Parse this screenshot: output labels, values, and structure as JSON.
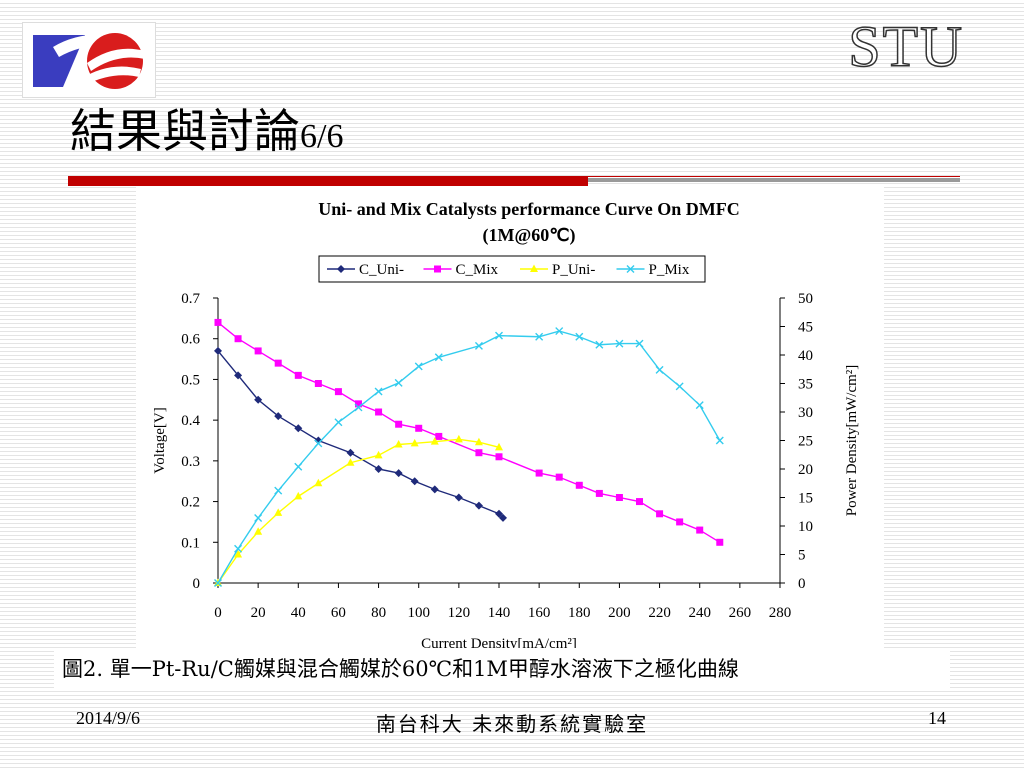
{
  "slide": {
    "brand": "STU",
    "title_cjk": "結果與討論",
    "title_num": "6/6",
    "caption": "圖2. 單一Pt-Ru/C觸媒與混合觸媒於60℃和1M甲醇水溶液下之極化曲線",
    "footer_date": "2014/9/6",
    "footer_center": "南台科大  未來動系統實驗室",
    "page_number": "14"
  },
  "colors": {
    "accent_red": "#c00000",
    "c_uni": "#1f2a7a",
    "c_mix": "#ff00ff",
    "p_uni": "#ffff00",
    "p_mix": "#33ccee"
  },
  "chart_data": {
    "type": "line",
    "title": "Uni- and Mix Catalysts performance Curve On DMFC",
    "subtitle": "(1M@60℃)",
    "xlabel": "Current Density[mA/cm²]",
    "ylabel": "Voltage[V]",
    "y2label": "Power Density[mW/cm²]",
    "xlim": [
      0,
      280
    ],
    "ylim": [
      0,
      0.7
    ],
    "y2lim": [
      0,
      50
    ],
    "xticks": [
      "0",
      "20",
      "40",
      "60",
      "80",
      "100",
      "120",
      "140",
      "160",
      "180",
      "200",
      "220",
      "240",
      "260",
      "280"
    ],
    "yticks": [
      "0",
      "0.1",
      "0.2",
      "0.3",
      "0.4",
      "0.5",
      "0.6",
      "0.7"
    ],
    "y2ticks": [
      "0",
      "5",
      "10",
      "15",
      "20",
      "25",
      "30",
      "35",
      "40",
      "45",
      "50"
    ],
    "legend_position": "top",
    "series": [
      {
        "name": "C_Uni-",
        "axis": "left",
        "marker": "diamond",
        "color": "#1f2a7a",
        "points": [
          [
            0,
            0.57
          ],
          [
            10,
            0.51
          ],
          [
            20,
            0.45
          ],
          [
            30,
            0.41
          ],
          [
            40,
            0.38
          ],
          [
            50,
            0.35
          ],
          [
            66,
            0.32
          ],
          [
            80,
            0.28
          ],
          [
            90,
            0.27
          ],
          [
            98,
            0.25
          ],
          [
            108,
            0.23
          ],
          [
            120,
            0.21
          ],
          [
            130,
            0.19
          ],
          [
            140,
            0.17
          ],
          [
            142,
            0.16
          ]
        ]
      },
      {
        "name": "C_Mix",
        "axis": "left",
        "marker": "square",
        "color": "#ff00ff",
        "points": [
          [
            0,
            0.64
          ],
          [
            10,
            0.6
          ],
          [
            20,
            0.57
          ],
          [
            30,
            0.54
          ],
          [
            40,
            0.51
          ],
          [
            50,
            0.49
          ],
          [
            60,
            0.47
          ],
          [
            70,
            0.44
          ],
          [
            80,
            0.42
          ],
          [
            90,
            0.39
          ],
          [
            100,
            0.38
          ],
          [
            110,
            0.36
          ],
          [
            130,
            0.32
          ],
          [
            140,
            0.31
          ],
          [
            160,
            0.27
          ],
          [
            170,
            0.26
          ],
          [
            180,
            0.24
          ],
          [
            190,
            0.22
          ],
          [
            200,
            0.21
          ],
          [
            210,
            0.2
          ],
          [
            220,
            0.17
          ],
          [
            230,
            0.15
          ],
          [
            240,
            0.13
          ],
          [
            250,
            0.1
          ]
        ]
      },
      {
        "name": "P_Uni-",
        "axis": "right",
        "marker": "triangle",
        "color": "#ffff00",
        "points": [
          [
            0,
            0
          ],
          [
            10,
            5
          ],
          [
            20,
            9
          ],
          [
            30,
            12.3
          ],
          [
            40,
            15.2
          ],
          [
            50,
            17.5
          ],
          [
            66,
            21.1
          ],
          [
            80,
            22.4
          ],
          [
            90,
            24.3
          ],
          [
            98,
            24.5
          ],
          [
            108,
            24.8
          ],
          [
            120,
            25.2
          ],
          [
            130,
            24.7
          ],
          [
            140,
            23.8
          ]
        ]
      },
      {
        "name": "P_Mix",
        "axis": "right",
        "marker": "x",
        "color": "#33ccee",
        "points": [
          [
            0,
            0
          ],
          [
            10,
            6
          ],
          [
            20,
            11.4
          ],
          [
            30,
            16.2
          ],
          [
            40,
            20.4
          ],
          [
            50,
            24.5
          ],
          [
            60,
            28.2
          ],
          [
            70,
            30.8
          ],
          [
            80,
            33.6
          ],
          [
            90,
            35.1
          ],
          [
            100,
            38
          ],
          [
            110,
            39.6
          ],
          [
            130,
            41.6
          ],
          [
            140,
            43.4
          ],
          [
            160,
            43.2
          ],
          [
            170,
            44.2
          ],
          [
            180,
            43.2
          ],
          [
            190,
            41.8
          ],
          [
            200,
            42
          ],
          [
            210,
            42
          ],
          [
            220,
            37.4
          ],
          [
            230,
            34.5
          ],
          [
            240,
            31.2
          ],
          [
            250,
            25
          ]
        ]
      }
    ]
  }
}
